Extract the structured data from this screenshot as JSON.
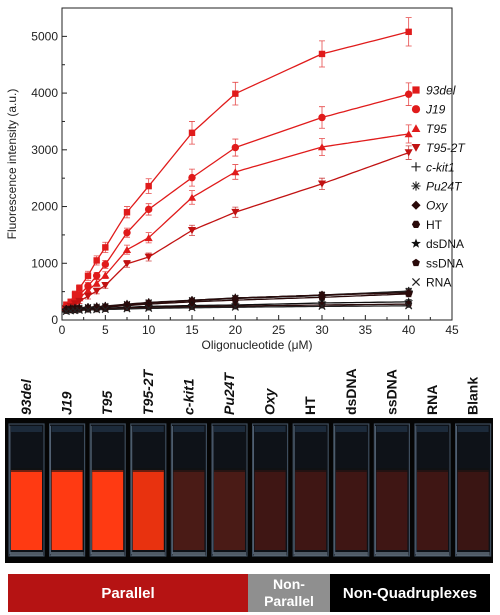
{
  "chart_data": {
    "type": "scatter",
    "xlabel": "Oligonucleotide (μM)",
    "ylabel": "Fluorescence intensity (a.u.)",
    "xlim": [
      0,
      45
    ],
    "ylim": [
      0,
      5500
    ],
    "x_ticks": [
      "0",
      "5",
      "10",
      "15",
      "20",
      "25",
      "30",
      "35",
      "40",
      "45"
    ],
    "y_ticks": [
      "0",
      "1000",
      "2000",
      "3000",
      "4000",
      "5000"
    ],
    "grid": false,
    "legend_position": "right",
    "fit_curves": true,
    "x": [
      0.5,
      1,
      1.5,
      2,
      3,
      4,
      5,
      7.5,
      10,
      15,
      20,
      30,
      40
    ],
    "series": [
      {
        "name": "93del",
        "marker": "square",
        "color": "#e01b1b",
        "italic": true,
        "values": [
          270,
          320,
          450,
          560,
          780,
          1050,
          1280,
          1900,
          2360,
          3300,
          3990,
          4690,
          5080
        ],
        "errors": [
          50,
          50,
          60,
          60,
          80,
          80,
          90,
          100,
          130,
          200,
          200,
          230,
          250
        ]
      },
      {
        "name": "J19",
        "marker": "circle",
        "color": "#e01b1b",
        "italic": true,
        "values": [
          240,
          290,
          360,
          440,
          600,
          780,
          980,
          1540,
          1950,
          2510,
          3040,
          3570,
          3980
        ],
        "errors": [
          40,
          40,
          50,
          50,
          60,
          60,
          70,
          80,
          100,
          150,
          150,
          190,
          200
        ]
      },
      {
        "name": "T95",
        "marker": "triangle-up",
        "color": "#e01b1b",
        "italic": true,
        "values": [
          220,
          270,
          330,
          390,
          520,
          650,
          790,
          1240,
          1450,
          2160,
          2610,
          3050,
          3280
        ],
        "errors": [
          40,
          40,
          40,
          50,
          50,
          60,
          60,
          80,
          90,
          120,
          130,
          150,
          160
        ]
      },
      {
        "name": "T95-2T",
        "marker": "triangle-down",
        "color": "#c11212",
        "italic": true,
        "values": [
          200,
          240,
          290,
          330,
          420,
          510,
          610,
          990,
          1110,
          1580,
          1900,
          2400,
          2950
        ],
        "errors": [
          40,
          40,
          40,
          40,
          50,
          50,
          50,
          60,
          70,
          90,
          90,
          100,
          120
        ]
      },
      {
        "name": "c-kit1",
        "marker": "plus",
        "color": "#222222",
        "italic": true,
        "values": [
          190,
          200,
          205,
          210,
          220,
          230,
          240,
          270,
          300,
          340,
          380,
          430,
          500
        ],
        "errors": [
          30,
          30,
          30,
          30,
          30,
          30,
          30,
          30,
          40,
          40,
          40,
          50,
          50
        ]
      },
      {
        "name": "Pu24T",
        "marker": "asterisk",
        "color": "#222222",
        "italic": true,
        "values": [
          190,
          200,
          210,
          215,
          225,
          235,
          245,
          280,
          310,
          350,
          390,
          440,
          510
        ],
        "errors": [
          30,
          30,
          30,
          30,
          30,
          30,
          30,
          30,
          40,
          40,
          40,
          50,
          50
        ]
      },
      {
        "name": "Oxy",
        "marker": "diamond",
        "color": "#2a0a0a",
        "italic": true,
        "values": [
          190,
          200,
          205,
          210,
          220,
          230,
          240,
          275,
          305,
          345,
          385,
          440,
          480
        ],
        "errors": [
          30,
          30,
          30,
          30,
          30,
          30,
          30,
          30,
          40,
          40,
          40,
          50,
          50
        ]
      },
      {
        "name": "HT",
        "marker": "hexagon",
        "color": "#2a0a0a",
        "italic": false,
        "values": [
          180,
          190,
          195,
          200,
          210,
          215,
          225,
          255,
          280,
          320,
          350,
          400,
          460
        ],
        "errors": [
          30,
          30,
          30,
          30,
          30,
          30,
          30,
          30,
          30,
          40,
          40,
          40,
          50
        ]
      },
      {
        "name": "dsDNA",
        "marker": "star",
        "color": "#111111",
        "italic": false,
        "values": [
          170,
          180,
          185,
          190,
          195,
          200,
          205,
          225,
          240,
          255,
          265,
          300,
          320
        ],
        "errors": [
          30,
          30,
          30,
          30,
          30,
          30,
          30,
          30,
          30,
          30,
          30,
          40,
          40
        ]
      },
      {
        "name": "ssDNA",
        "marker": "pentagon",
        "color": "#2a0a0a",
        "italic": false,
        "values": [
          160,
          170,
          175,
          180,
          185,
          190,
          195,
          210,
          225,
          235,
          245,
          265,
          280
        ],
        "errors": [
          30,
          30,
          30,
          30,
          30,
          30,
          30,
          30,
          30,
          30,
          30,
          30,
          30
        ]
      },
      {
        "name": "RNA",
        "marker": "x",
        "color": "#222222",
        "italic": false,
        "values": [
          150,
          160,
          165,
          170,
          175,
          180,
          185,
          195,
          205,
          215,
          225,
          240,
          250
        ],
        "errors": [
          30,
          30,
          30,
          30,
          30,
          30,
          30,
          30,
          30,
          30,
          30,
          30,
          30
        ]
      }
    ]
  },
  "photo": {
    "cuvettes": [
      {
        "label": "93del",
        "italic": true,
        "liquid_color": "#ff3a12"
      },
      {
        "label": "J19",
        "italic": true,
        "liquid_color": "#ff3a12"
      },
      {
        "label": "T95",
        "italic": true,
        "liquid_color": "#ff3a12"
      },
      {
        "label": "T95-2T",
        "italic": true,
        "liquid_color": "#e8320f"
      },
      {
        "label": "c-kit1",
        "italic": true,
        "liquid_color": "#4a1b16"
      },
      {
        "label": "Pu24T",
        "italic": true,
        "liquid_color": "#4a1b16"
      },
      {
        "label": "Oxy",
        "italic": true,
        "liquid_color": "#3f1614"
      },
      {
        "label": "HT",
        "italic": false,
        "liquid_color": "#3f1614"
      },
      {
        "label": "dsDNA",
        "italic": false,
        "liquid_color": "#3f1614"
      },
      {
        "label": "ssDNA",
        "italic": false,
        "liquid_color": "#3f1614"
      },
      {
        "label": "RNA",
        "italic": false,
        "liquid_color": "#3f1614"
      },
      {
        "label": "Blank",
        "italic": false,
        "liquid_color": "#3a1513"
      }
    ]
  },
  "categories": {
    "parallel": {
      "label": "Parallel",
      "color": "#b51313"
    },
    "non_parallel": {
      "label_line1": "Non-",
      "label_line2": "Parallel",
      "color": "#8f8f8f"
    },
    "non_quadruplexes": {
      "label": "Non-Quadruplexes",
      "color": "#000000"
    }
  }
}
